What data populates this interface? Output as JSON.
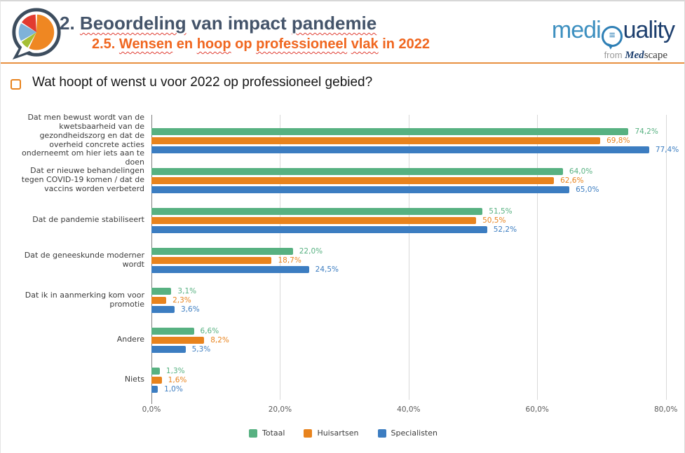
{
  "header": {
    "title": "2. Beoordeling van impact pandemie",
    "title_segments": [
      {
        "text": "2. ",
        "wavy": false
      },
      {
        "text": "Beoordeling",
        "wavy": true
      },
      {
        "text": " van impact ",
        "wavy": false
      },
      {
        "text": "pandemie",
        "wavy": true
      }
    ],
    "subtitle": "2.5. Wensen en hoop op professioneel vlak in 2022",
    "subtitle_segments": [
      {
        "text": "2.5. ",
        "wavy": false
      },
      {
        "text": "Wensen",
        "wavy": true
      },
      {
        "text": " en ",
        "wavy": false
      },
      {
        "text": "hoop",
        "wavy": true
      },
      {
        "text": " op ",
        "wavy": false
      },
      {
        "text": "professioneel",
        "wavy": true
      },
      {
        "text": " ",
        "wavy": false
      },
      {
        "text": "vlak",
        "wavy": true
      },
      {
        "text": " in 2022",
        "wavy": false
      }
    ],
    "brand": {
      "medi": "medi",
      "quality_rest": "uality",
      "q_glyph": "≡",
      "from": "from ",
      "med": "Med",
      "scape": "scape"
    }
  },
  "question": "Wat hoopt of wenst u voor 2022 op professioneel gebied?",
  "chart_data": {
    "type": "bar",
    "orientation": "horizontal",
    "categories": [
      "Dat men bewust wordt van de kwetsbaarheid van de gezondheidszorg en dat de overheid concrete acties onderneemt om hier iets aan te doen",
      "Dat er nieuwe behandelingen tegen COVID-19 komen / dat de vaccins worden verbeterd",
      "Dat de pandemie stabiliseert",
      "Dat de geneeskunde moderner wordt",
      "Dat ik in aanmerking kom voor promotie",
      "Andere",
      "Niets"
    ],
    "series": [
      {
        "name": "Totaal",
        "color": "#57b181",
        "values": [
          74.2,
          64.0,
          51.5,
          22.0,
          3.1,
          6.6,
          1.3
        ],
        "labels": [
          "74,2%",
          "64,0%",
          "51,5%",
          "22,0%",
          "3,1%",
          "6,6%",
          "1,3%"
        ]
      },
      {
        "name": "Huisartsen",
        "color": "#e8831d",
        "values": [
          69.8,
          62.6,
          50.5,
          18.7,
          2.3,
          8.2,
          1.6
        ],
        "labels": [
          "69,8%",
          "62,6%",
          "50,5%",
          "18,7%",
          "2,3%",
          "8,2%",
          "1,6%"
        ]
      },
      {
        "name": "Specialisten",
        "color": "#3c7dc1",
        "values": [
          77.4,
          65.0,
          52.2,
          24.5,
          3.6,
          5.3,
          1.0
        ],
        "labels": [
          "77,4%",
          "65,0%",
          "52,2%",
          "24,5%",
          "3,6%",
          "5,3%",
          "1,0%"
        ]
      }
    ],
    "x_ticks": [
      {
        "label": "0,0%",
        "value": 0
      },
      {
        "label": "20,0%",
        "value": 20
      },
      {
        "label": "40,0%",
        "value": 40
      },
      {
        "label": "60,0%",
        "value": 60
      },
      {
        "label": "80,0%",
        "value": 80
      }
    ],
    "xlim": [
      0,
      82
    ],
    "grid": "vertical",
    "legend_position": "bottom"
  }
}
